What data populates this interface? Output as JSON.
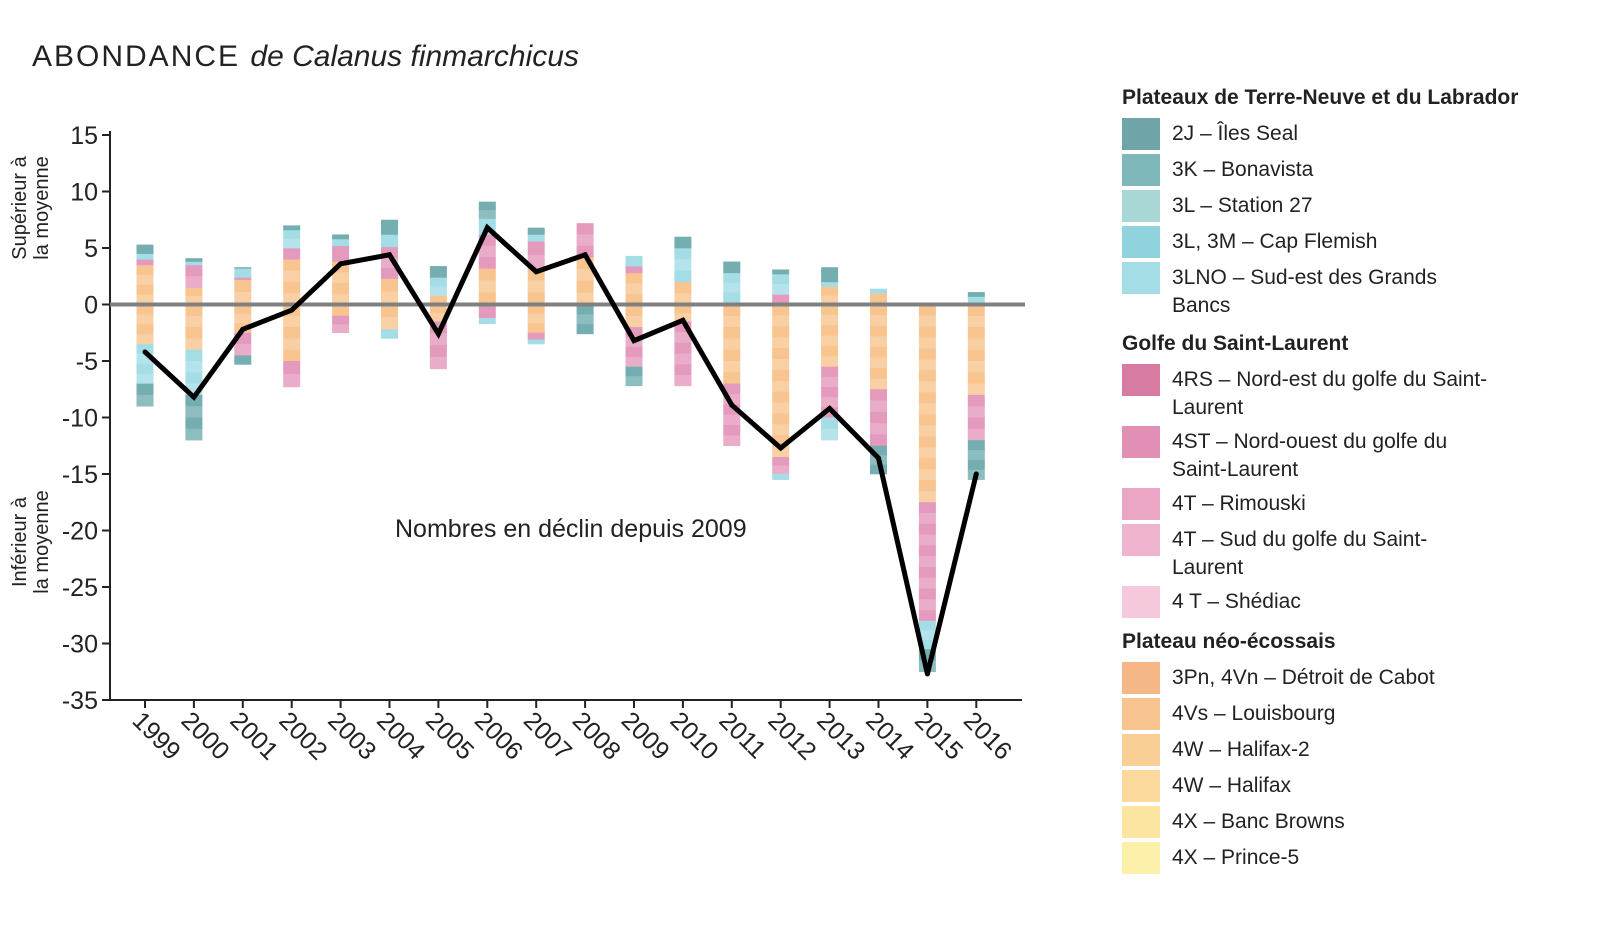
{
  "title": {
    "main": "ABONDANCE",
    "italic": "de Calanus finmarchicus"
  },
  "annotation": "Nombres en déclin depuis 2009",
  "y_axis_labels": {
    "above": [
      "Supérieur à",
      "la moyenne"
    ],
    "below": [
      "Inférieur à",
      "la moyenne"
    ]
  },
  "legend": {
    "groups": [
      {
        "title": "Plateaux de Terre-Neuve et du Labrador",
        "items": [
          {
            "label": "2J – Îles Seal",
            "color": "#6fa5a8"
          },
          {
            "label": "3K – Bonavista",
            "color": "#7fb8bb"
          },
          {
            "label": "3L – Station 27",
            "color": "#a9d7d6"
          },
          {
            "label": "3L, 3M – Cap Flemish",
            "color": "#8fd3dd"
          },
          {
            "label": "3LNO – Sud-est des Grands Bancs",
            "color": "#a5dde6"
          }
        ]
      },
      {
        "title": "Golfe du Saint-Laurent",
        "items": [
          {
            "label": "4RS – Nord-est du golfe du Saint-Laurent",
            "color": "#d77ba3"
          },
          {
            "label": "4ST – Nord-ouest du golfe du Saint-Laurent",
            "color": "#e28fb5"
          },
          {
            "label": "4T – Rimouski",
            "color": "#eaa6c4"
          },
          {
            "label": "4T – Sud du golfe du Saint-Laurent",
            "color": "#efb5cf"
          },
          {
            "label": "4 T – Shédiac",
            "color": "#f6c8dc"
          }
        ]
      },
      {
        "title": "Plateau néo-écossais",
        "items": [
          {
            "label": "3Pn, 4Vn – Détroit de Cabot",
            "color": "#f6b787"
          },
          {
            "label": "4Vs – Louisbourg",
            "color": "#f8c490"
          },
          {
            "label": "4W – Halifax-2",
            "color": "#facf95"
          },
          {
            "label": "4W – Halifax",
            "color": "#fbd89c"
          },
          {
            "label": "4X – Banc Browns",
            "color": "#fce4a1"
          },
          {
            "label": "4X – Prince-5",
            "color": "#fdf0aa"
          }
        ]
      }
    ]
  },
  "chart_data": {
    "type": "bar",
    "subtype": "stacked bar with line",
    "categories": [
      "1999",
      "2000",
      "2001",
      "2002",
      "2003",
      "2004",
      "2005",
      "2006",
      "2007",
      "2008",
      "2009",
      "2010",
      "2011",
      "2012",
      "2013",
      "2014",
      "2015",
      "2016"
    ],
    "ylim": [
      -35,
      15
    ],
    "yticks": [
      15,
      10,
      5,
      0,
      -5,
      -10,
      -15,
      -20,
      -25,
      -30,
      -35
    ],
    "grid": false,
    "legend_position": "right",
    "bars_positive": [
      {
        "segments": [
          {
            "group": "orange",
            "value": 3.5
          },
          {
            "group": "pink",
            "value": 0.5
          },
          {
            "group": "blue",
            "value": 0.5
          },
          {
            "group": "teal",
            "value": 0.8
          }
        ]
      },
      {
        "segments": [
          {
            "group": "orange",
            "value": 1.5
          },
          {
            "group": "pink",
            "value": 2.0
          },
          {
            "group": "blue",
            "value": 0.3
          },
          {
            "group": "teal",
            "value": 0.3
          }
        ]
      },
      {
        "segments": [
          {
            "group": "orange",
            "value": 2.2
          },
          {
            "group": "pink",
            "value": 0.2
          },
          {
            "group": "blue",
            "value": 0.8
          },
          {
            "group": "teal",
            "value": 0.1
          }
        ]
      },
      {
        "segments": [
          {
            "group": "orange",
            "value": 4.0
          },
          {
            "group": "pink",
            "value": 1.0
          },
          {
            "group": "blue",
            "value": 1.6
          },
          {
            "group": "teal",
            "value": 0.4
          }
        ]
      },
      {
        "segments": [
          {
            "group": "orange",
            "value": 3.8
          },
          {
            "group": "pink",
            "value": 1.4
          },
          {
            "group": "blue",
            "value": 0.6
          },
          {
            "group": "teal",
            "value": 0.4
          }
        ]
      },
      {
        "segments": [
          {
            "group": "orange",
            "value": 2.3
          },
          {
            "group": "pink",
            "value": 2.8
          },
          {
            "group": "blue",
            "value": 1.1
          },
          {
            "group": "teal",
            "value": 1.3
          }
        ]
      },
      {
        "segments": [
          {
            "group": "orange",
            "value": 0.8
          },
          {
            "group": "blue",
            "value": 1.6
          },
          {
            "group": "teal",
            "value": 1.0
          }
        ]
      },
      {
        "segments": [
          {
            "group": "orange",
            "value": 3.2
          },
          {
            "group": "pink",
            "value": 3.0
          },
          {
            "group": "blue",
            "value": 1.4
          },
          {
            "group": "teal",
            "value": 1.5
          }
        ]
      },
      {
        "segments": [
          {
            "group": "orange",
            "value": 3.2
          },
          {
            "group": "pink",
            "value": 2.4
          },
          {
            "group": "blue",
            "value": 0.6
          },
          {
            "group": "teal",
            "value": 0.6
          }
        ]
      },
      {
        "segments": [
          {
            "group": "orange",
            "value": 4.2
          },
          {
            "group": "pink",
            "value": 3.0
          }
        ]
      },
      {
        "segments": [
          {
            "group": "orange",
            "value": 2.8
          },
          {
            "group": "pink",
            "value": 0.6
          },
          {
            "group": "blue",
            "value": 0.9
          }
        ]
      },
      {
        "segments": [
          {
            "group": "orange",
            "value": 2.0
          },
          {
            "group": "blue",
            "value": 3.0
          },
          {
            "group": "teal",
            "value": 1.0
          }
        ]
      },
      {
        "segments": [
          {
            "group": "orange",
            "value": 0.2
          },
          {
            "group": "blue",
            "value": 2.6
          },
          {
            "group": "teal",
            "value": 1.0
          }
        ]
      },
      {
        "segments": [
          {
            "group": "pink",
            "value": 0.9
          },
          {
            "group": "blue",
            "value": 1.8
          },
          {
            "group": "teal",
            "value": 0.4
          }
        ]
      },
      {
        "segments": [
          {
            "group": "orange",
            "value": 1.6
          },
          {
            "group": "blue",
            "value": 0.4
          },
          {
            "group": "teal",
            "value": 1.3
          }
        ]
      },
      {
        "segments": [
          {
            "group": "orange",
            "value": 1.0
          },
          {
            "group": "blue",
            "value": 0.4
          }
        ]
      },
      {
        "segments": []
      },
      {
        "segments": [
          {
            "group": "blue",
            "value": 0.7
          },
          {
            "group": "teal",
            "value": 0.4
          }
        ]
      }
    ],
    "bars_negative": [
      {
        "segments": [
          {
            "group": "orange",
            "value": -3.5
          },
          {
            "group": "blue",
            "value": -3.5
          },
          {
            "group": "teal",
            "value": -2.0
          }
        ]
      },
      {
        "segments": [
          {
            "group": "orange",
            "value": -4.0
          },
          {
            "group": "blue",
            "value": -4.0
          },
          {
            "group": "teal",
            "value": -4.0
          }
        ]
      },
      {
        "segments": [
          {
            "group": "orange",
            "value": -2.5
          },
          {
            "group": "pink",
            "value": -2.0
          },
          {
            "group": "teal",
            "value": -0.8
          }
        ]
      },
      {
        "segments": [
          {
            "group": "orange",
            "value": -5.0
          },
          {
            "group": "pink",
            "value": -2.3
          }
        ]
      },
      {
        "segments": [
          {
            "group": "orange",
            "value": -1.0
          },
          {
            "group": "pink",
            "value": -1.5
          }
        ]
      },
      {
        "segments": [
          {
            "group": "orange",
            "value": -2.2
          },
          {
            "group": "blue",
            "value": -0.8
          }
        ]
      },
      {
        "segments": [
          {
            "group": "orange",
            "value": -1.5
          },
          {
            "group": "pink",
            "value": -4.2
          }
        ]
      },
      {
        "segments": [
          {
            "group": "pink",
            "value": -1.2
          },
          {
            "group": "blue",
            "value": -0.5
          }
        ]
      },
      {
        "segments": [
          {
            "group": "orange",
            "value": -2.5
          },
          {
            "group": "pink",
            "value": -0.6
          },
          {
            "group": "blue",
            "value": -0.4
          }
        ]
      },
      {
        "segments": [
          {
            "group": "teal",
            "value": -2.6
          }
        ]
      },
      {
        "segments": [
          {
            "group": "orange",
            "value": -2.0
          },
          {
            "group": "pink",
            "value": -3.5
          },
          {
            "group": "teal",
            "value": -1.7
          }
        ]
      },
      {
        "segments": [
          {
            "group": "orange",
            "value": -1.5
          },
          {
            "group": "pink",
            "value": -5.7
          }
        ]
      },
      {
        "segments": [
          {
            "group": "orange",
            "value": -7.0
          },
          {
            "group": "pink",
            "value": -5.5
          }
        ]
      },
      {
        "segments": [
          {
            "group": "orange",
            "value": -13.5
          },
          {
            "group": "pink",
            "value": -1.5
          },
          {
            "group": "blue",
            "value": -0.5
          }
        ]
      },
      {
        "segments": [
          {
            "group": "orange",
            "value": -5.5
          },
          {
            "group": "pink",
            "value": -4.5
          },
          {
            "group": "blue",
            "value": -2.0
          }
        ]
      },
      {
        "segments": [
          {
            "group": "orange",
            "value": -7.5
          },
          {
            "group": "pink",
            "value": -5.0
          },
          {
            "group": "teal",
            "value": -2.5
          }
        ]
      },
      {
        "segments": [
          {
            "group": "orange",
            "value": -17.5
          },
          {
            "group": "pink",
            "value": -10.5
          },
          {
            "group": "blue",
            "value": -2.5
          },
          {
            "group": "teal",
            "value": -2.0
          }
        ]
      },
      {
        "segments": [
          {
            "group": "orange",
            "value": -8.0
          },
          {
            "group": "pink",
            "value": -4.0
          },
          {
            "group": "teal",
            "value": -3.5
          }
        ]
      }
    ],
    "group_colors": {
      "orange": "#f8c490",
      "pink": "#e49abd",
      "blue": "#a5dde6",
      "teal": "#74aeb1"
    },
    "line": {
      "values": [
        -4.2,
        -8.2,
        -2.2,
        -0.5,
        3.6,
        4.4,
        -2.6,
        6.8,
        2.9,
        4.4,
        -3.2,
        -1.4,
        -8.9,
        -12.7,
        -9.2,
        -13.6,
        -32.7,
        -15.0
      ],
      "color": "#000000"
    },
    "zero_line_color": "#808080"
  }
}
